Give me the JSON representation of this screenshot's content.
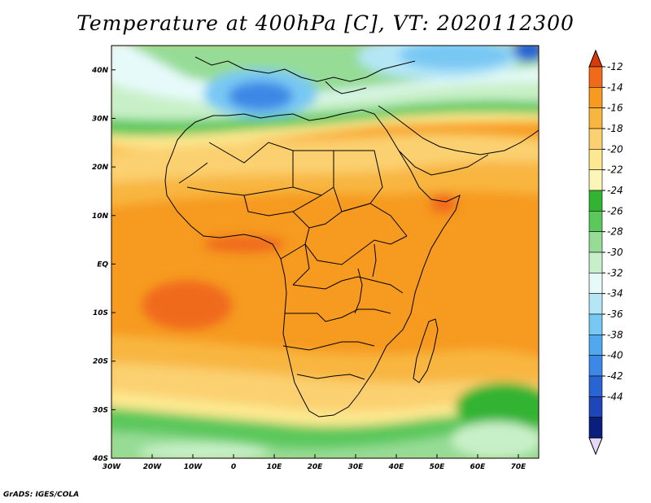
{
  "title": "Temperature at 400hPa [C], VT: 2020112300",
  "credit": "GrADS: IGES/COLA",
  "map": {
    "lon_range": [
      -30,
      75
    ],
    "lat_range": [
      -40,
      45
    ],
    "x_ticks": [
      {
        "lon": -30,
        "label": "30W"
      },
      {
        "lon": -20,
        "label": "20W"
      },
      {
        "lon": -10,
        "label": "10W"
      },
      {
        "lon": 0,
        "label": "0"
      },
      {
        "lon": 10,
        "label": "10E"
      },
      {
        "lon": 20,
        "label": "20E"
      },
      {
        "lon": 30,
        "label": "30E"
      },
      {
        "lon": 40,
        "label": "40E"
      },
      {
        "lon": 50,
        "label": "50E"
      },
      {
        "lon": 60,
        "label": "60E"
      },
      {
        "lon": 70,
        "label": "70E"
      }
    ],
    "y_ticks": [
      {
        "lat": 40,
        "label": "40N"
      },
      {
        "lat": 30,
        "label": "30N"
      },
      {
        "lat": 20,
        "label": "20N"
      },
      {
        "lat": 10,
        "label": "10N"
      },
      {
        "lat": 0,
        "label": "EQ"
      },
      {
        "lat": -10,
        "label": "10S"
      },
      {
        "lat": -20,
        "label": "20S"
      },
      {
        "lat": -30,
        "label": "30S"
      },
      {
        "lat": -40,
        "label": "40S"
      }
    ]
  },
  "colorbar": {
    "levels": [
      "-12",
      "-14",
      "-16",
      "-18",
      "-20",
      "-22",
      "-24",
      "-26",
      "-28",
      "-30",
      "-32",
      "-34",
      "-36",
      "-38",
      "-40",
      "-42",
      "-44"
    ],
    "colors": [
      "#d83a0a",
      "#f06a1a",
      "#f69a20",
      "#f8b640",
      "#fbd070",
      "#fde890",
      "#fbf6b8",
      "#32b432",
      "#5cc85c",
      "#96dc96",
      "#c8f0c8",
      "#e6fafa",
      "#b4e6f6",
      "#78c8f4",
      "#50a8ee",
      "#3c88e6",
      "#2864d2",
      "#1e46b8",
      "#0a1e7e",
      "#e6d8f8"
    ]
  }
}
